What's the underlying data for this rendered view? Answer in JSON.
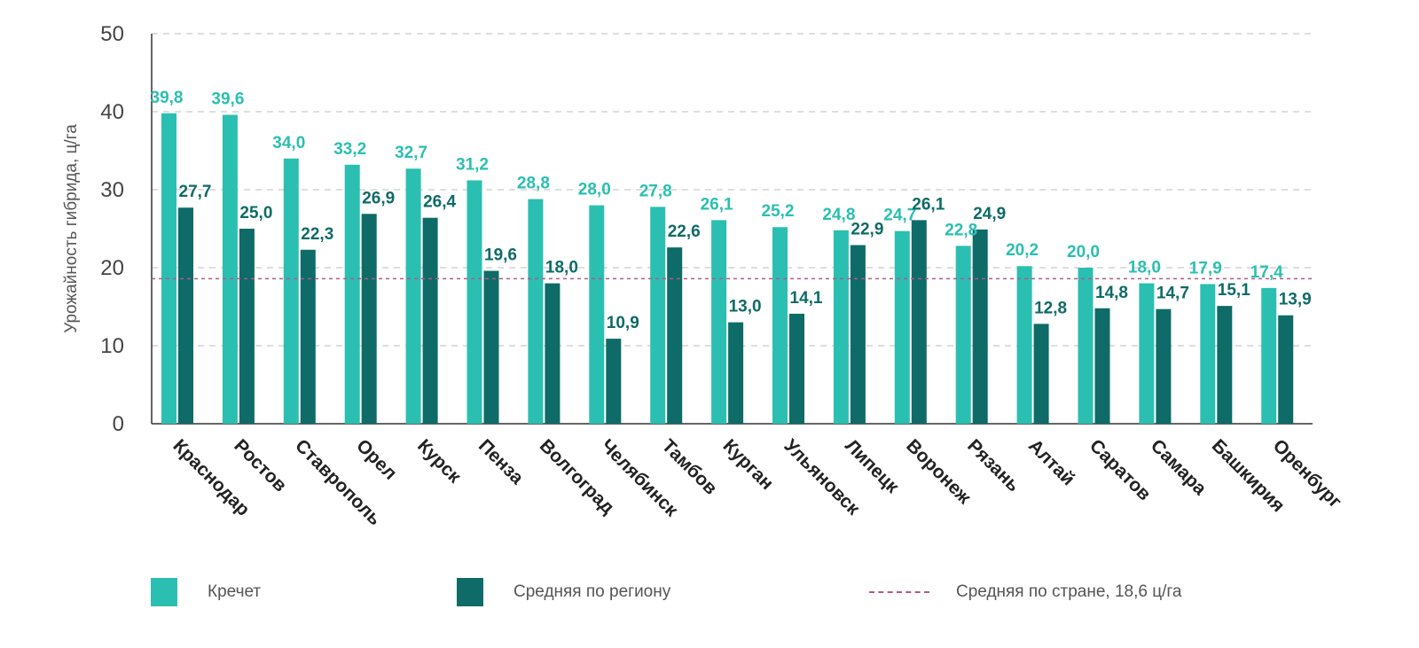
{
  "chart_data": {
    "type": "bar",
    "ylabel": "Урожайность гибрида, ц/га",
    "ylim": [
      0,
      50
    ],
    "yticks": [
      0,
      10,
      20,
      30,
      40,
      50
    ],
    "categories": [
      "Краснодар",
      "Ростов",
      "Ставрополь",
      "Орел",
      "Курск",
      "Пенза",
      "Волгоград",
      "Челябинск",
      "Тамбов",
      "Курган",
      "Ульяновск",
      "Липецк",
      "Воронеж",
      "Рязань",
      "Алтай",
      "Саратов",
      "Самара",
      "Башкирия",
      "Оренбург"
    ],
    "series": [
      {
        "name": "Кречет",
        "color": "#2bbfb1",
        "values": [
          39.8,
          39.6,
          34.0,
          33.2,
          32.7,
          31.2,
          28.8,
          28.0,
          27.8,
          26.1,
          25.2,
          24.8,
          24.7,
          22.8,
          20.2,
          20.0,
          18.0,
          17.9,
          17.4
        ]
      },
      {
        "name": "Средняя по региону",
        "color": "#0e6b67",
        "values": [
          27.7,
          25.0,
          22.3,
          26.9,
          26.4,
          19.6,
          18.0,
          10.9,
          22.6,
          13.0,
          14.1,
          22.9,
          26.1,
          24.9,
          12.8,
          14.8,
          14.7,
          15.1,
          13.9
        ]
      }
    ],
    "data_labels": {
      "series_0": [
        "39,8",
        "39,6",
        "34,0",
        "33,2",
        "32,7",
        "31,2",
        "28,8",
        "28,0",
        "27,8",
        "26,1",
        "25,2",
        "24,8",
        "24,7",
        "22,8",
        "20,2",
        "20,0",
        "18,0",
        "17,9",
        "17,4"
      ],
      "series_1": [
        "27,7",
        "25,0",
        "22,3",
        "26,9",
        "26,4",
        "19,6",
        "18,0",
        "10,9",
        "22,6",
        "13,0",
        "14,1",
        "22,9",
        "26,1",
        "24,9",
        "12,8",
        "14,8",
        "14,7",
        "15,1",
        "13,9"
      ]
    },
    "reference_line": {
      "label": "Средняя по стране, 18,6 ц/га",
      "value": 18.6,
      "color": "#b05a8a",
      "style": "dashed"
    },
    "grid": true,
    "legend_position": "bottom"
  }
}
